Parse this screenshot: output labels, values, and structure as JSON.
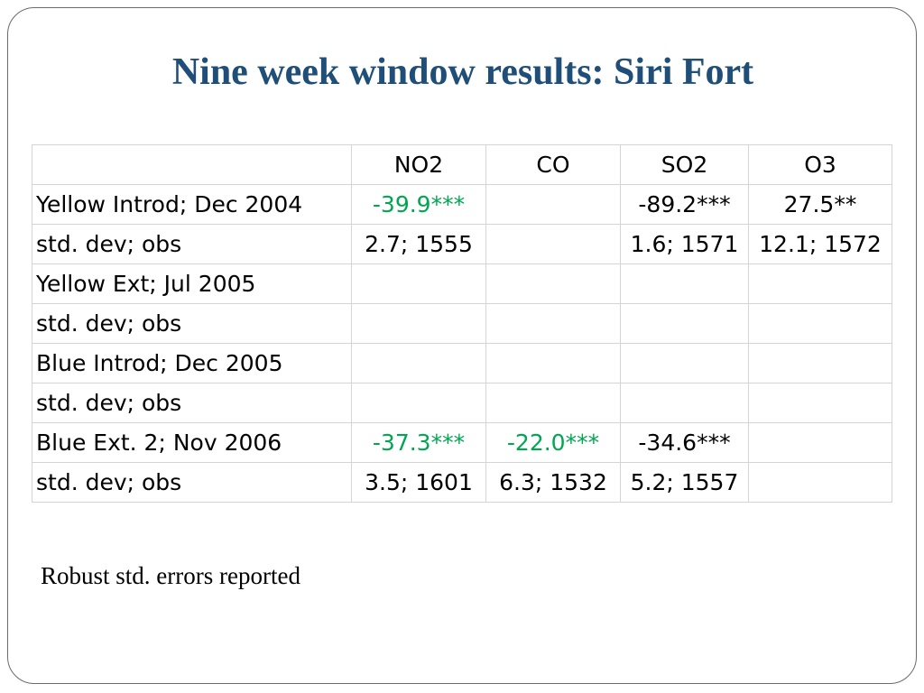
{
  "slide": {
    "title": "Nine week window results: Siri Fort",
    "footnote": "Robust std. errors reported",
    "colors": {
      "title": "#1f4e79",
      "significant_green": "#00a651",
      "text": "#000000",
      "grid": "#d4d4d4"
    }
  },
  "table": {
    "headers": [
      "",
      "NO2",
      "CO",
      "SO2",
      "O3"
    ],
    "rows": [
      {
        "label": "Yellow Introd; Dec 2004",
        "cells": [
          {
            "v": "-39.9***",
            "style": "green"
          },
          {
            "v": "",
            "style": ""
          },
          {
            "v": "-89.2***",
            "style": "boldblk"
          },
          {
            "v": "27.5**",
            "style": "boldblk"
          }
        ]
      },
      {
        "label": "std. dev; obs",
        "cells": [
          {
            "v": "2.7; 1555",
            "style": ""
          },
          {
            "v": "",
            "style": ""
          },
          {
            "v": "1.6; 1571",
            "style": ""
          },
          {
            "v": "12.1; 1572",
            "style": ""
          }
        ]
      },
      {
        "label": "Yellow Ext; Jul 2005",
        "cells": [
          {
            "v": "",
            "style": ""
          },
          {
            "v": "",
            "style": ""
          },
          {
            "v": "",
            "style": ""
          },
          {
            "v": "",
            "style": ""
          }
        ]
      },
      {
        "label": "std. dev; obs",
        "cells": [
          {
            "v": "",
            "style": ""
          },
          {
            "v": "",
            "style": ""
          },
          {
            "v": "",
            "style": ""
          },
          {
            "v": "",
            "style": ""
          }
        ]
      },
      {
        "label": "Blue Introd; Dec 2005",
        "cells": [
          {
            "v": "",
            "style": ""
          },
          {
            "v": "",
            "style": ""
          },
          {
            "v": "",
            "style": ""
          },
          {
            "v": "",
            "style": ""
          }
        ]
      },
      {
        "label": "std. dev; obs",
        "cells": [
          {
            "v": "",
            "style": ""
          },
          {
            "v": "",
            "style": ""
          },
          {
            "v": "",
            "style": ""
          },
          {
            "v": "",
            "style": ""
          }
        ]
      },
      {
        "label": "Blue Ext. 2; Nov 2006",
        "cells": [
          {
            "v": "-37.3***",
            "style": "green"
          },
          {
            "v": "-22.0***",
            "style": "green"
          },
          {
            "v": "-34.6***",
            "style": "boldblk"
          },
          {
            "v": "",
            "style": ""
          }
        ]
      },
      {
        "label": "std. dev; obs",
        "cells": [
          {
            "v": "3.5; 1601",
            "style": ""
          },
          {
            "v": "6.3; 1532",
            "style": ""
          },
          {
            "v": "5.2; 1557",
            "style": ""
          },
          {
            "v": "",
            "style": ""
          }
        ]
      }
    ]
  }
}
